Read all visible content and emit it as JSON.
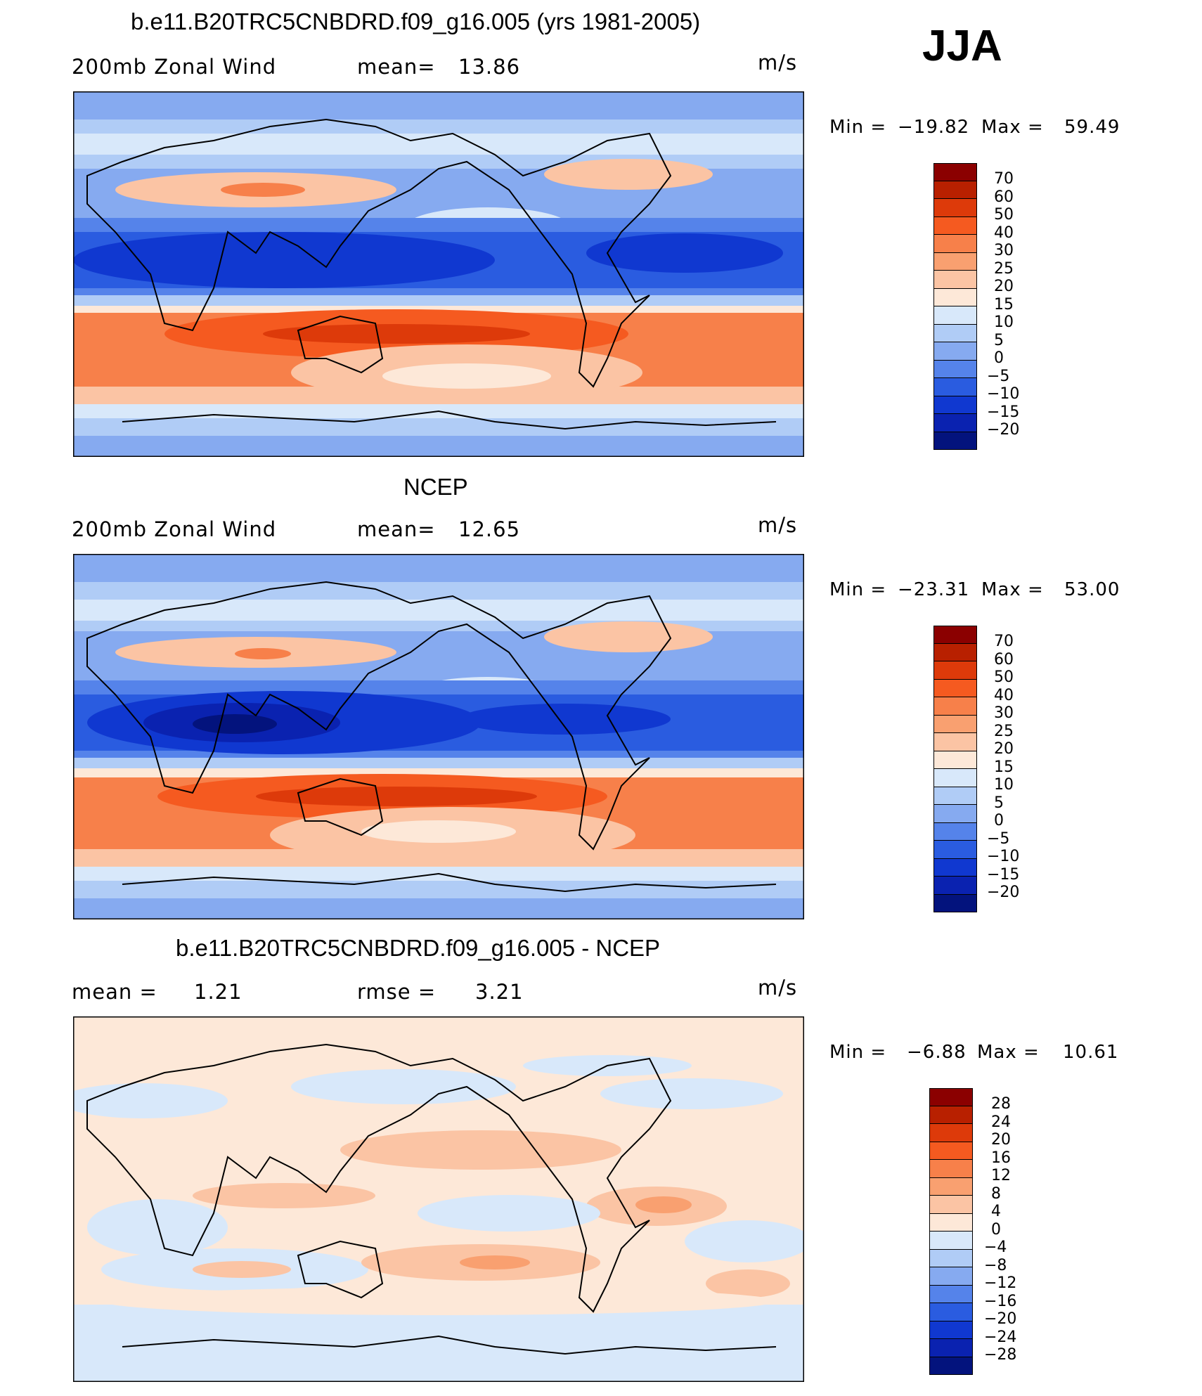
{
  "season": "JJA",
  "units": "m/s",
  "panels": [
    {
      "title": "b.e11.B20TRC5CNBDRD.f09_g16.005 (yrs 1981-2005)",
      "left_label": "200mb Zonal Wind",
      "mean_label": "mean=",
      "mean_value": "13.86",
      "units": "m/s",
      "min_label": "Min =",
      "min_value": "−19.82",
      "max_label": "Max =",
      "max_value": "59.49",
      "colorbar_labels": [
        "70",
        "60",
        "50",
        "40",
        "30",
        "25",
        "20",
        "15",
        "10",
        "5",
        "0",
        "−5",
        "−10",
        "−15",
        "−20"
      ]
    },
    {
      "title": "NCEP",
      "left_label": "200mb Zonal Wind",
      "mean_label": "mean=",
      "mean_value": "12.65",
      "units": "m/s",
      "min_label": "Min =",
      "min_value": "−23.31",
      "max_label": "Max =",
      "max_value": "53.00",
      "colorbar_labels": [
        "70",
        "60",
        "50",
        "40",
        "30",
        "25",
        "20",
        "15",
        "10",
        "5",
        "0",
        "−5",
        "−10",
        "−15",
        "−20"
      ]
    },
    {
      "title": "b.e11.B20TRC5CNBDRD.f09_g16.005 - NCEP",
      "mean_label": "mean =",
      "mean_value": "1.21",
      "rmse_label": "rmse =",
      "rmse_value": "3.21",
      "units": "m/s",
      "min_label": "Min =",
      "min_value": "−6.88",
      "max_label": "Max =",
      "max_value": "10.61",
      "colorbar_labels": [
        "28",
        "24",
        "20",
        "16",
        "12",
        "8",
        "4",
        "0",
        "−4",
        "−8",
        "−12",
        "−16",
        "−20",
        "−24",
        "−28"
      ]
    }
  ],
  "colors": {
    "wind_scale": [
      "#8b0000",
      "#b82000",
      "#dd3a0a",
      "#f55a20",
      "#f7804a",
      "#f9a070",
      "#fbc4a4",
      "#fde8d8",
      "#d8e8fa",
      "#b0ccf6",
      "#86aaf0",
      "#5583ea",
      "#2a5ce0",
      "#1038d0",
      "#0a22b0",
      "#03137d"
    ],
    "diff_scale": [
      "#8b0000",
      "#b82000",
      "#dd3a0a",
      "#f55a20",
      "#f7804a",
      "#f9a070",
      "#fbc4a4",
      "#fde8d8",
      "#d8e8fa",
      "#b0ccf6",
      "#86aaf0",
      "#5583ea",
      "#2a5ce0",
      "#1038d0",
      "#0a22b0",
      "#03137d"
    ]
  }
}
